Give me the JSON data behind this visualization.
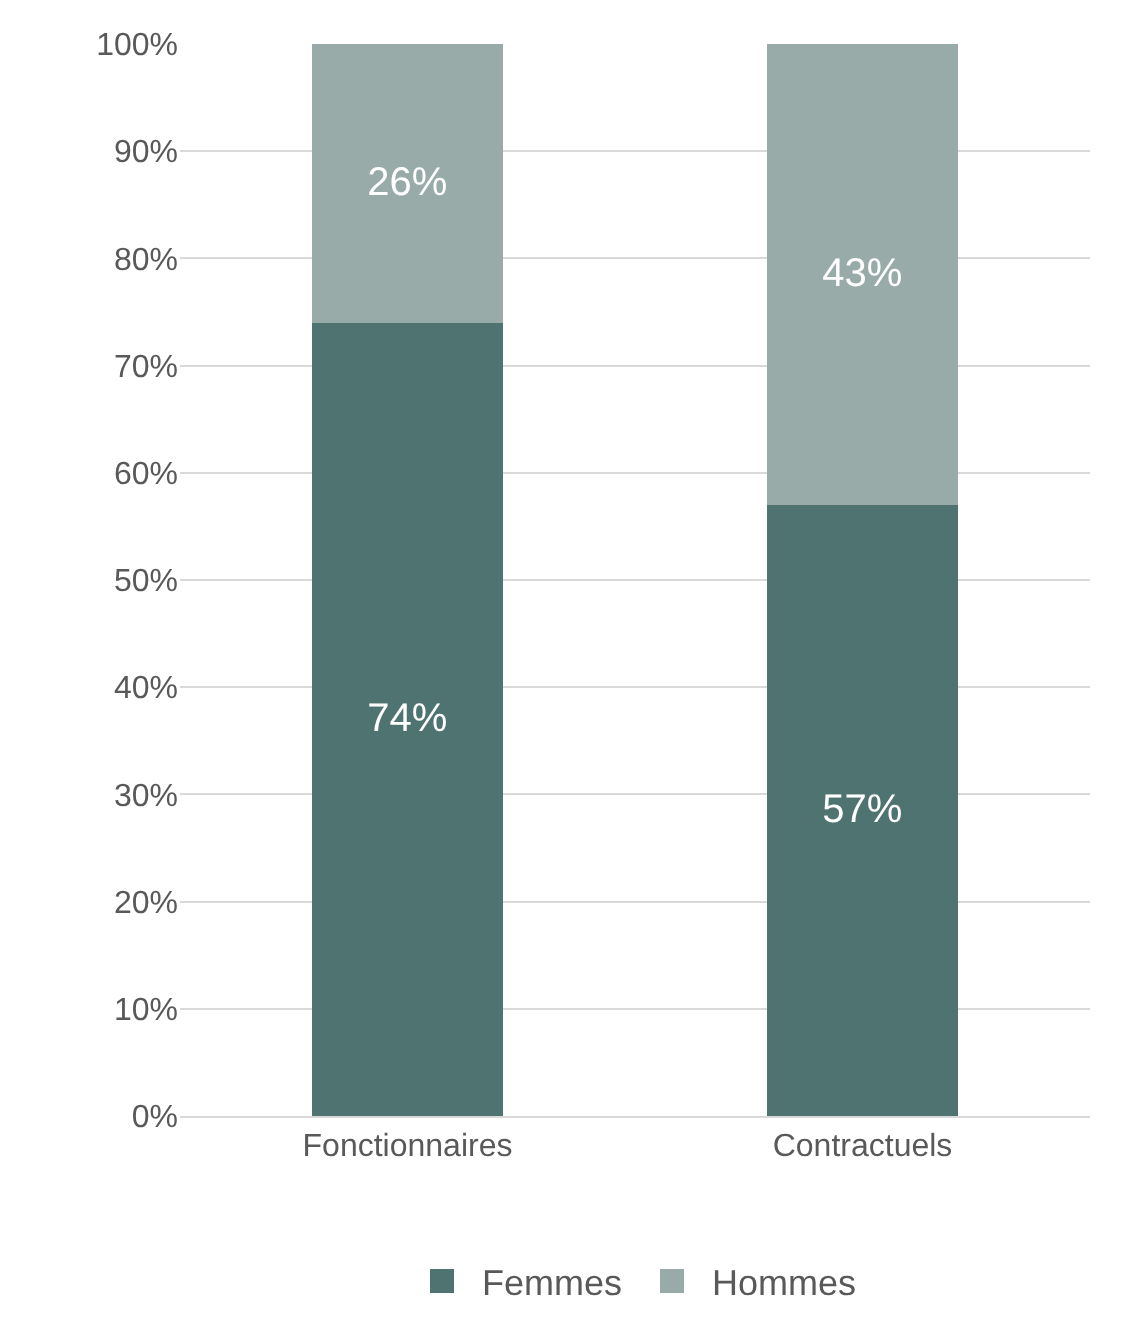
{
  "chart_data": {
    "type": "bar",
    "stacked": true,
    "categories": [
      "Fonctionnaires",
      "Contractuels"
    ],
    "series": [
      {
        "name": "Femmes",
        "color": "#4f7370",
        "values": [
          74,
          57
        ],
        "value_labels": [
          "74%",
          "57%"
        ]
      },
      {
        "name": "Hommes",
        "color": "#98aba8",
        "values": [
          26,
          43
        ],
        "value_labels": [
          "26%",
          "43%"
        ]
      }
    ],
    "ylim": [
      0,
      100
    ],
    "yticks": [
      {
        "value": 0,
        "label": "0%"
      },
      {
        "value": 10,
        "label": "10%"
      },
      {
        "value": 20,
        "label": "20%"
      },
      {
        "value": 30,
        "label": "30%"
      },
      {
        "value": 40,
        "label": "40%"
      },
      {
        "value": 50,
        "label": "50%"
      },
      {
        "value": 60,
        "label": "60%"
      },
      {
        "value": 70,
        "label": "70%"
      },
      {
        "value": 80,
        "label": "80%"
      },
      {
        "value": 90,
        "label": "90%"
      },
      {
        "value": 100,
        "label": "100%"
      }
    ],
    "grid": "y",
    "legend": "bottom"
  }
}
